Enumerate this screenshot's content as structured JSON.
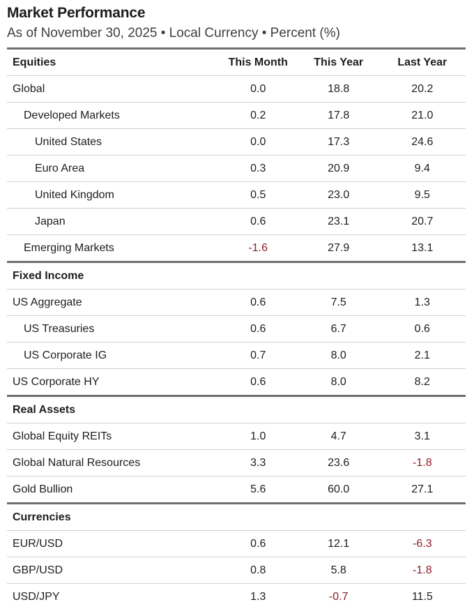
{
  "header": {
    "title": "Market Performance",
    "subtitle": "As of November 30, 2025 • Local Currency • Percent (%)"
  },
  "colors": {
    "text": "#1d1d1d",
    "subtitle_text": "#3f3f3f",
    "negative_value": "#8e1b26",
    "thick_rule": "#6f6f6f",
    "thin_rule": "#d0d0d0"
  },
  "chart_data": {
    "type": "table",
    "title": "Market Performance",
    "subtitle": "As of November 30, 2025 • Local Currency • Percent (%)",
    "columns": [
      "This Month",
      "This Year",
      "Last Year"
    ],
    "sections": [
      {
        "name": "Equities",
        "rows": [
          {
            "label": "Global",
            "indent": 0,
            "values": [
              "0.0",
              "18.8",
              "20.2"
            ]
          },
          {
            "label": "Developed Markets",
            "indent": 1,
            "values": [
              "0.2",
              "17.8",
              "21.0"
            ]
          },
          {
            "label": "United States",
            "indent": 2,
            "values": [
              "0.0",
              "17.3",
              "24.6"
            ]
          },
          {
            "label": "Euro Area",
            "indent": 2,
            "values": [
              "0.3",
              "20.9",
              "9.4"
            ]
          },
          {
            "label": "United Kingdom",
            "indent": 2,
            "values": [
              "0.5",
              "23.0",
              "9.5"
            ]
          },
          {
            "label": "Japan",
            "indent": 2,
            "values": [
              "0.6",
              "23.1",
              "20.7"
            ]
          },
          {
            "label": "Emerging Markets",
            "indent": 1,
            "values": [
              "-1.6",
              "27.9",
              "13.1"
            ]
          }
        ]
      },
      {
        "name": "Fixed Income",
        "rows": [
          {
            "label": "US Aggregate",
            "indent": 0,
            "values": [
              "0.6",
              "7.5",
              "1.3"
            ]
          },
          {
            "label": "US Treasuries",
            "indent": 1,
            "values": [
              "0.6",
              "6.7",
              "0.6"
            ]
          },
          {
            "label": "US Corporate IG",
            "indent": 1,
            "values": [
              "0.7",
              "8.0",
              "2.1"
            ]
          },
          {
            "label": "US Corporate HY",
            "indent": 0,
            "values": [
              "0.6",
              "8.0",
              "8.2"
            ]
          }
        ]
      },
      {
        "name": "Real Assets",
        "rows": [
          {
            "label": "Global Equity REITs",
            "indent": 0,
            "values": [
              "1.0",
              "4.7",
              "3.1"
            ]
          },
          {
            "label": "Global Natural Resources",
            "indent": 0,
            "values": [
              "3.3",
              "23.6",
              "-1.8"
            ]
          },
          {
            "label": "Gold Bullion",
            "indent": 0,
            "values": [
              "5.6",
              "60.0",
              "27.1"
            ]
          }
        ]
      },
      {
        "name": "Currencies",
        "rows": [
          {
            "label": "EUR/USD",
            "indent": 0,
            "values": [
              "0.6",
              "12.1",
              "-6.3"
            ]
          },
          {
            "label": "GBP/USD",
            "indent": 0,
            "values": [
              "0.8",
              "5.8",
              "-1.8"
            ]
          },
          {
            "label": "USD/JPY",
            "indent": 0,
            "values": [
              "1.3",
              "-0.7",
              "11.5"
            ]
          }
        ]
      }
    ]
  }
}
